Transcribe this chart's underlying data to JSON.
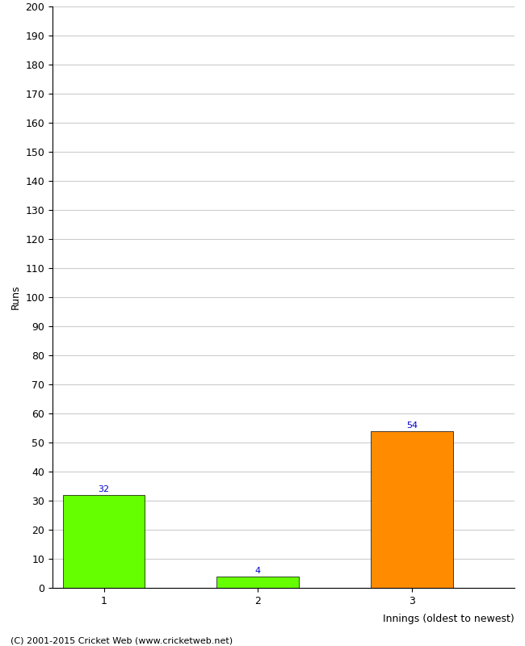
{
  "categories": [
    "1",
    "2",
    "3"
  ],
  "values": [
    32,
    4,
    54
  ],
  "bar_colors": [
    "#66ff00",
    "#66ff00",
    "#ff8c00"
  ],
  "xlabel": "Innings (oldest to newest)",
  "ylabel": "Runs",
  "ylim": [
    0,
    200
  ],
  "yticks": [
    0,
    10,
    20,
    30,
    40,
    50,
    60,
    70,
    80,
    90,
    100,
    110,
    120,
    130,
    140,
    150,
    160,
    170,
    180,
    190,
    200
  ],
  "annotation_color": "#0000cc",
  "annotation_fontsize": 8,
  "footer": "(C) 2001-2015 Cricket Web (www.cricketweb.net)",
  "background_color": "#ffffff",
  "grid_color": "#cccccc",
  "x_positions": [
    1,
    4,
    7
  ],
  "xlim": [
    0,
    9
  ],
  "bar_width": 1.6
}
